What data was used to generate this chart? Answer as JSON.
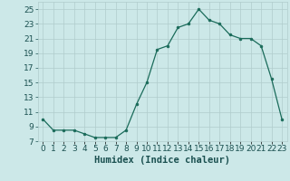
{
  "x": [
    0,
    1,
    2,
    3,
    4,
    5,
    6,
    7,
    8,
    9,
    10,
    11,
    12,
    13,
    14,
    15,
    16,
    17,
    18,
    19,
    20,
    21,
    22,
    23
  ],
  "y": [
    10,
    8.5,
    8.5,
    8.5,
    8,
    7.5,
    7.5,
    7.5,
    8.5,
    12,
    15,
    19.5,
    20,
    22.5,
    23,
    25,
    23.5,
    23,
    21.5,
    21,
    21,
    20,
    15.5,
    10
  ],
  "line_color": "#1a6b5a",
  "marker_color": "#1a6b5a",
  "bg_color": "#cce8e8",
  "grid_color": "#b0cccc",
  "xlabel": "Humidex (Indice chaleur)",
  "ylim": [
    7,
    26
  ],
  "xlim": [
    -0.5,
    23.5
  ],
  "yticks": [
    7,
    9,
    11,
    13,
    15,
    17,
    19,
    21,
    23,
    25
  ],
  "xtick_labels": [
    "0",
    "1",
    "2",
    "3",
    "4",
    "5",
    "6",
    "7",
    "8",
    "9",
    "10",
    "11",
    "12",
    "13",
    "14",
    "15",
    "16",
    "17",
    "18",
    "19",
    "20",
    "21",
    "22",
    "23"
  ],
  "font_color": "#1a5050",
  "font_size": 6.5,
  "xlabel_fontsize": 7.5,
  "marker_size": 2.0,
  "line_width": 0.9
}
